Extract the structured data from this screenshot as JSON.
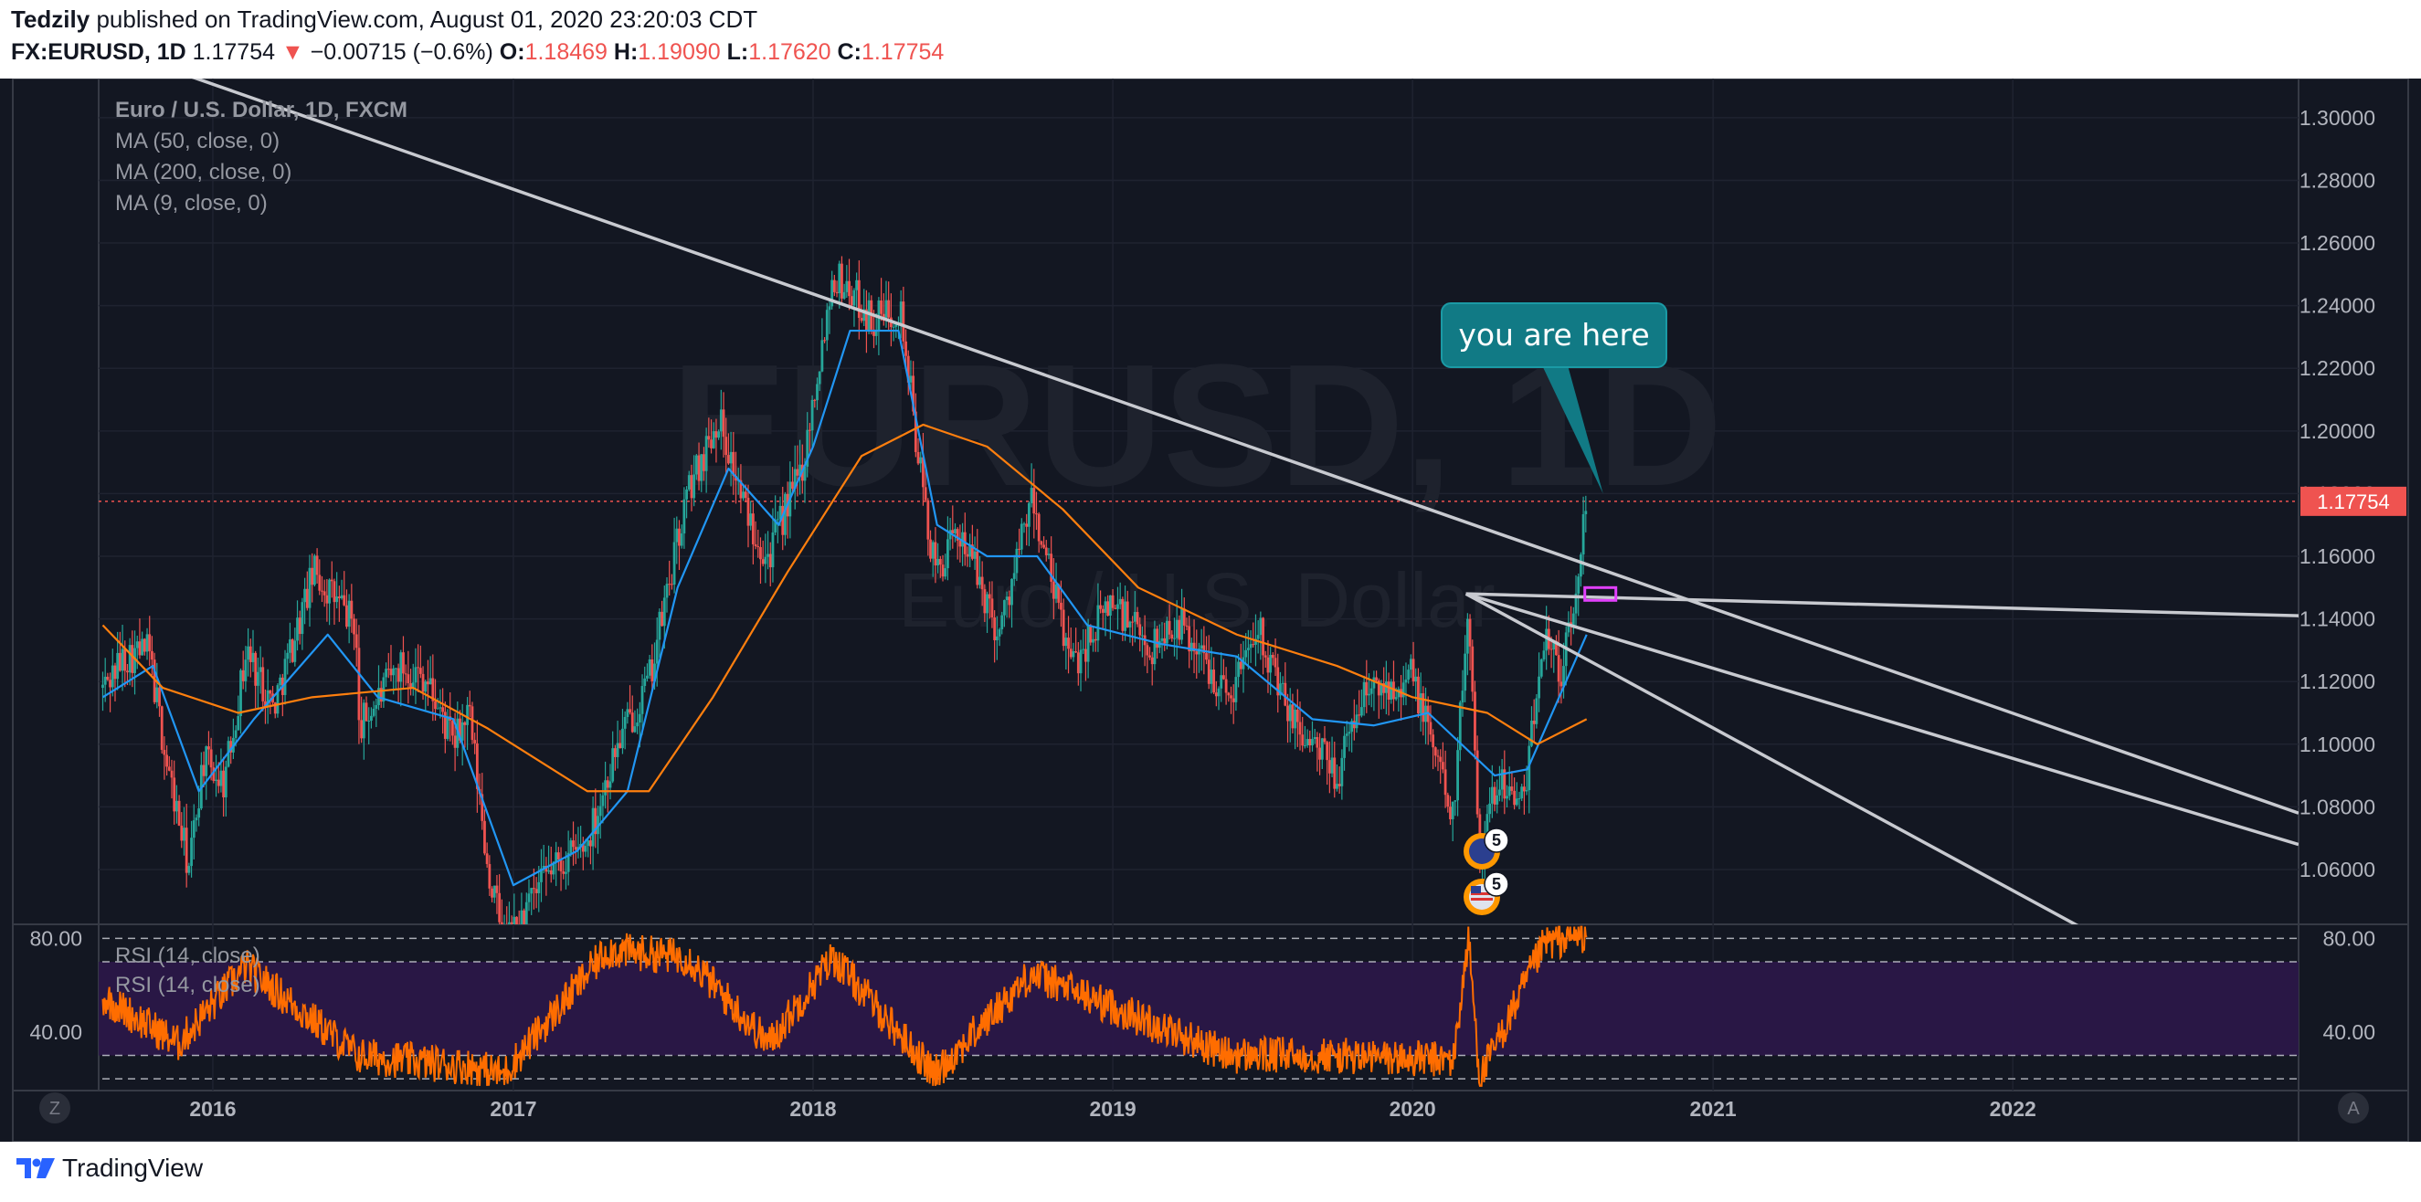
{
  "header": {
    "author": "Tedzily",
    "published": "published on TradingView.com, August 01, 2020 23:20:03 CDT",
    "symbol": "FX:EURUSD, 1D",
    "last": "1.17754",
    "down_arrow": "▼",
    "change": "−0.00715 (−0.6%)",
    "o_label": "O:",
    "o_value": "1.18469",
    "h_label": "H:",
    "h_value": "1.19090",
    "l_label": "L:",
    "l_value": "1.17620",
    "c_label": "C:",
    "c_value": "1.17754"
  },
  "legend": {
    "title": "Euro / U.S. Dollar, 1D, FXCM",
    "ma50": "MA (50, close, 0)",
    "ma200": "MA (200, close, 0)",
    "ma9": "MA (9, close, 0)",
    "rsi_a": "RSI (14, close)",
    "rsi_b": "RSI (14, close)"
  },
  "watermark": {
    "symbol": "EURUSD, 1D",
    "description": "Euro / U.S. Dollar"
  },
  "callout": {
    "text": "you are here"
  },
  "current_price_label": "1.17754",
  "event_badges": {
    "eu_count": "5",
    "us_count": "5"
  },
  "corner_buttons": {
    "left": "Z",
    "right": "A"
  },
  "footer": {
    "brand": "TradingView"
  },
  "colors": {
    "background": "#131722",
    "up": "#26a69a",
    "down": "#ef5350",
    "ma50": "#2196f3",
    "ma200": "#ff7f0e",
    "trendline": "#c8cad0",
    "rsi": "#ff6d00",
    "rsi_band": "#2a1748",
    "callout": "#117a85",
    "marker_box": "#e040fb"
  },
  "chart_data": {
    "type": "candlestick",
    "symbol": "FX:EURUSD",
    "interval": "1D",
    "price_axis": {
      "ticks": [
        "1.30000",
        "1.28000",
        "1.26000",
        "1.24000",
        "1.22000",
        "1.20000",
        "1.18000",
        "1.16000",
        "1.14000",
        "1.12000",
        "1.10000",
        "1.08000",
        "1.06000"
      ],
      "ylim": [
        1.0425,
        1.3125
      ]
    },
    "time_axis": {
      "ticks": [
        "2016",
        "2017",
        "2018",
        "2019",
        "2020",
        "2021",
        "2022"
      ],
      "xlim": [
        "2015-08-15",
        "2022-12-15"
      ]
    },
    "price_path": [
      [
        "2015-08-20",
        1.118
      ],
      [
        "2015-09-15",
        1.128
      ],
      [
        "2015-10-15",
        1.13
      ],
      [
        "2015-11-05",
        1.095
      ],
      [
        "2015-12-03",
        1.06
      ],
      [
        "2015-12-20",
        1.095
      ],
      [
        "2016-01-15",
        1.088
      ],
      [
        "2016-02-11",
        1.13
      ],
      [
        "2016-03-15",
        1.112
      ],
      [
        "2016-05-03",
        1.155
      ],
      [
        "2016-06-23",
        1.138
      ],
      [
        "2016-06-27",
        1.105
      ],
      [
        "2016-08-15",
        1.125
      ],
      [
        "2016-09-15",
        1.122
      ],
      [
        "2016-10-20",
        1.1
      ],
      [
        "2016-11-08",
        1.11
      ],
      [
        "2016-12-01",
        1.06
      ],
      [
        "2016-12-20",
        1.038
      ],
      [
        "2017-01-03",
        1.04
      ],
      [
        "2017-02-15",
        1.06
      ],
      [
        "2017-03-31",
        1.068
      ],
      [
        "2017-05-08",
        1.1
      ],
      [
        "2017-06-15",
        1.12
      ],
      [
        "2017-08-01",
        1.18
      ],
      [
        "2017-09-08",
        1.205
      ],
      [
        "2017-10-10",
        1.175
      ],
      [
        "2017-11-07",
        1.16
      ],
      [
        "2017-12-20",
        1.19
      ],
      [
        "2018-01-25",
        1.25
      ],
      [
        "2018-02-15",
        1.245
      ],
      [
        "2018-03-15",
        1.235
      ],
      [
        "2018-04-17",
        1.24
      ],
      [
        "2018-05-10",
        1.19
      ],
      [
        "2018-05-29",
        1.155
      ],
      [
        "2018-07-01",
        1.168
      ],
      [
        "2018-08-15",
        1.135
      ],
      [
        "2018-09-24",
        1.178
      ],
      [
        "2018-11-12",
        1.125
      ],
      [
        "2018-12-31",
        1.146
      ],
      [
        "2019-02-15",
        1.13
      ],
      [
        "2019-03-20",
        1.14
      ],
      [
        "2019-05-23",
        1.115
      ],
      [
        "2019-06-25",
        1.14
      ],
      [
        "2019-08-01",
        1.11
      ],
      [
        "2019-10-01",
        1.09
      ],
      [
        "2019-11-01",
        1.116
      ],
      [
        "2019-12-31",
        1.122
      ],
      [
        "2020-02-20",
        1.078
      ],
      [
        "2020-03-09",
        1.145
      ],
      [
        "2020-03-23",
        1.065
      ],
      [
        "2020-04-15",
        1.09
      ],
      [
        "2020-05-15",
        1.08
      ],
      [
        "2020-06-10",
        1.138
      ],
      [
        "2020-06-30",
        1.123
      ],
      [
        "2020-07-15",
        1.142
      ],
      [
        "2020-07-31",
        1.18
      ]
    ],
    "last_price": 1.17754,
    "series": [
      {
        "name": "MA (50, close, 0)",
        "color": "#2196f3",
        "points": [
          [
            "2015-08-20",
            1.115
          ],
          [
            "2015-10-20",
            1.125
          ],
          [
            "2015-12-15",
            1.085
          ],
          [
            "2016-02-20",
            1.108
          ],
          [
            "2016-05-20",
            1.135
          ],
          [
            "2016-07-20",
            1.115
          ],
          [
            "2016-10-20",
            1.108
          ],
          [
            "2017-01-01",
            1.055
          ],
          [
            "2017-03-20",
            1.066
          ],
          [
            "2017-05-20",
            1.085
          ],
          [
            "2017-07-20",
            1.15
          ],
          [
            "2017-09-20",
            1.188
          ],
          [
            "2017-11-20",
            1.17
          ],
          [
            "2018-01-01",
            1.195
          ],
          [
            "2018-02-15",
            1.232
          ],
          [
            "2018-04-15",
            1.232
          ],
          [
            "2018-06-01",
            1.17
          ],
          [
            "2018-08-01",
            1.16
          ],
          [
            "2018-10-01",
            1.16
          ],
          [
            "2018-12-01",
            1.138
          ],
          [
            "2019-03-01",
            1.132
          ],
          [
            "2019-06-01",
            1.128
          ],
          [
            "2019-09-01",
            1.108
          ],
          [
            "2019-11-15",
            1.106
          ],
          [
            "2020-01-20",
            1.11
          ],
          [
            "2020-04-10",
            1.09
          ],
          [
            "2020-05-20",
            1.092
          ],
          [
            "2020-07-31",
            1.135
          ]
        ]
      },
      {
        "name": "MA (200, close, 0)",
        "color": "#ff7f0e",
        "points": [
          [
            "2015-08-20",
            1.138
          ],
          [
            "2015-11-01",
            1.118
          ],
          [
            "2016-02-01",
            1.11
          ],
          [
            "2016-05-01",
            1.115
          ],
          [
            "2016-09-01",
            1.118
          ],
          [
            "2016-12-01",
            1.105
          ],
          [
            "2017-04-01",
            1.085
          ],
          [
            "2017-06-15",
            1.085
          ],
          [
            "2017-09-01",
            1.115
          ],
          [
            "2017-12-01",
            1.155
          ],
          [
            "2018-03-01",
            1.192
          ],
          [
            "2018-05-15",
            1.202
          ],
          [
            "2018-08-01",
            1.195
          ],
          [
            "2018-11-01",
            1.175
          ],
          [
            "2019-02-01",
            1.15
          ],
          [
            "2019-06-01",
            1.135
          ],
          [
            "2019-10-01",
            1.125
          ],
          [
            "2020-01-01",
            1.115
          ],
          [
            "2020-04-01",
            1.11
          ],
          [
            "2020-06-01",
            1.1
          ],
          [
            "2020-07-31",
            1.108
          ]
        ]
      },
      {
        "name": "Trendline A",
        "color": "#c8cad0",
        "points": [
          [
            "2015-11-15",
            1.315
          ],
          [
            "2022-12-15",
            1.078
          ]
        ]
      },
      {
        "name": "Trendline B",
        "color": "#c8cad0",
        "points": [
          [
            "2020-03-06",
            1.148
          ],
          [
            "2022-12-15",
            1.141
          ]
        ]
      },
      {
        "name": "Trendline C",
        "color": "#c8cad0",
        "points": [
          [
            "2020-03-06",
            1.148
          ],
          [
            "2022-12-15",
            1.068
          ]
        ]
      },
      {
        "name": "Trendline D",
        "color": "#c8cad0",
        "points": [
          [
            "2020-03-06",
            1.148
          ],
          [
            "2022-04-01",
            1.0405
          ]
        ]
      }
    ],
    "rsi": {
      "name": "RSI (14, close)",
      "ticks": [
        "80.00",
        "40.00"
      ],
      "ylim": [
        15,
        86
      ],
      "levels": [
        80,
        70,
        30,
        20
      ],
      "path": [
        [
          "2015-08-20",
          55
        ],
        [
          "2015-11-20",
          35
        ],
        [
          "2016-02-10",
          68
        ],
        [
          "2016-06-25",
          30
        ],
        [
          "2016-11-15",
          25
        ],
        [
          "2016-12-20",
          22
        ],
        [
          "2017-04-25",
          75
        ],
        [
          "2017-08-01",
          72
        ],
        [
          "2017-11-08",
          35
        ],
        [
          "2018-01-25",
          72
        ],
        [
          "2018-05-29",
          22
        ],
        [
          "2018-09-24",
          65
        ],
        [
          "2019-05-23",
          30
        ],
        [
          "2019-09-01",
          30
        ],
        [
          "2020-02-20",
          28
        ],
        [
          "2020-03-09",
          80
        ],
        [
          "2020-03-23",
          20
        ],
        [
          "2020-06-10",
          78
        ],
        [
          "2020-07-31",
          82
        ]
      ]
    }
  }
}
